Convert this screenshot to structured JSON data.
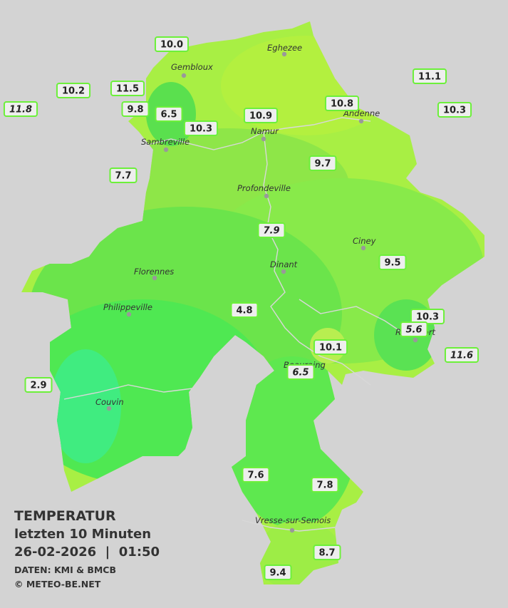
{
  "header": {
    "title": "TEMPERATUR",
    "subtitle": "letzten 10 Minuten",
    "timestamp": "26-02-2026  |  01:50",
    "source": "DATEN: KMI & BMCB",
    "credit": "© METEO-BE.NET"
  },
  "places": [
    "Eghezee",
    "Gembloux",
    "Andenne",
    "Namur",
    "Sambreville",
    "Profondeville",
    "Ciney",
    "Dinant",
    "Florennes",
    "Philippeville",
    "Rochefort",
    "Beauraing",
    "Couvin",
    "Vresse-sur-Semois"
  ],
  "stations": [
    "10.0",
    "10.2",
    "11.5",
    "11.8",
    "9.8",
    "6.5",
    "10.3",
    "10.9",
    "10.8",
    "11.1",
    "10.3",
    "9.7",
    "7.7",
    "7.9",
    "9.5",
    "4.8",
    "10.3",
    "5.6",
    "10.1",
    "11.6",
    "6.5",
    "2.9",
    "7.6",
    "7.8",
    "8.7",
    "9.4"
  ]
}
